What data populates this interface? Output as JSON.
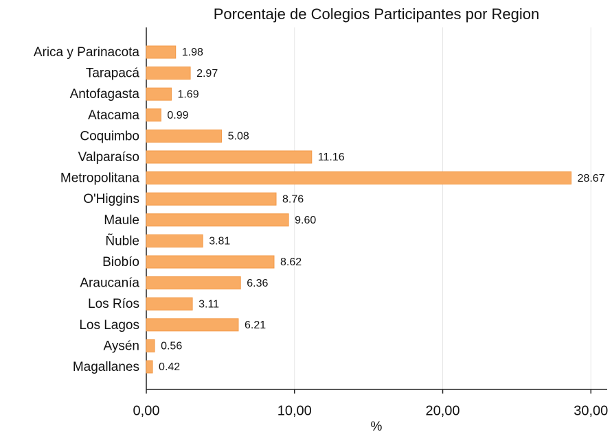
{
  "chart_data": {
    "type": "bar",
    "orientation": "horizontal",
    "title": "Porcentaje de Colegios Participantes por Region",
    "xlabel": "%",
    "categories": [
      "Arica y Parinacota",
      "Tarapacá",
      "Antofagasta",
      "Atacama",
      "Coquimbo",
      "Valparaíso",
      "Metropolitana",
      "O'Higgins",
      "Maule",
      "Ñuble",
      "Biobío",
      "Araucanía",
      "Los Ríos",
      "Los Lagos",
      "Aysén",
      "Magallanes"
    ],
    "values": [
      1.98,
      2.97,
      1.69,
      0.99,
      5.08,
      11.16,
      28.67,
      8.76,
      9.6,
      3.81,
      8.62,
      6.36,
      3.11,
      6.21,
      0.56,
      0.42
    ],
    "value_labels": [
      "1.98",
      "2.97",
      "1.69",
      "0.99",
      "5.08",
      "11.16",
      "28.67",
      "8.76",
      "9.60",
      "3.81",
      "8.62",
      "6.36",
      "3.11",
      "6.21",
      "0.56",
      "0.42"
    ],
    "color": "#f9ac64",
    "xlim": [
      0,
      31.1
    ],
    "xticks": [
      {
        "value": 0,
        "label": "0,00"
      },
      {
        "value": 10,
        "label": "10,00"
      },
      {
        "value": 20,
        "label": "20,00"
      },
      {
        "value": 30,
        "label": "30,00"
      }
    ],
    "grid": true
  }
}
